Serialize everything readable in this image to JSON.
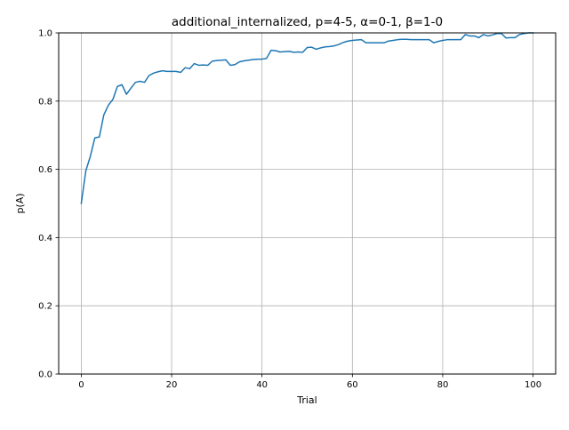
{
  "chart_data": {
    "type": "line",
    "title": "additional_internalized, p=4-5, α=0-1, β=1-0",
    "xlabel": "Trial",
    "ylabel": "p(A)",
    "xlim": [
      -5,
      105
    ],
    "ylim": [
      0.0,
      1.0
    ],
    "xticks": [
      0,
      20,
      40,
      60,
      80,
      100
    ],
    "yticks": [
      0.0,
      0.2,
      0.4,
      0.6,
      0.8,
      1.0
    ],
    "xtick_labels": [
      "0",
      "20",
      "40",
      "60",
      "80",
      "100"
    ],
    "ytick_labels": [
      "0.0",
      "0.2",
      "0.4",
      "0.6",
      "0.8",
      "1.0"
    ],
    "grid": true,
    "series": [
      {
        "color": "#1f77b4",
        "x": [
          0,
          1,
          2,
          3,
          4,
          5,
          6,
          7,
          8,
          9,
          10,
          11,
          12,
          13,
          14,
          15,
          16,
          17,
          18,
          19,
          20,
          21,
          22,
          23,
          24,
          25,
          26,
          27,
          28,
          29,
          30,
          31,
          32,
          33,
          34,
          35,
          36,
          37,
          38,
          39,
          40,
          41,
          42,
          43,
          44,
          45,
          46,
          47,
          48,
          49,
          50,
          51,
          52,
          53,
          54,
          55,
          56,
          57,
          58,
          59,
          60,
          61,
          62,
          63,
          64,
          65,
          66,
          67,
          68,
          69,
          70,
          71,
          72,
          73,
          74,
          75,
          76,
          77,
          78,
          79,
          80,
          81,
          82,
          83,
          84,
          85,
          86,
          87,
          88,
          89,
          90,
          91,
          92,
          93,
          94,
          95,
          96,
          97,
          98,
          99,
          100
        ],
        "y": [
          0.5,
          0.595,
          0.638,
          0.692,
          0.695,
          0.76,
          0.788,
          0.805,
          0.843,
          0.848,
          0.82,
          0.838,
          0.855,
          0.858,
          0.855,
          0.875,
          0.882,
          0.886,
          0.889,
          0.887,
          0.887,
          0.887,
          0.884,
          0.898,
          0.895,
          0.91,
          0.905,
          0.906,
          0.905,
          0.917,
          0.919,
          0.92,
          0.921,
          0.905,
          0.907,
          0.915,
          0.918,
          0.92,
          0.922,
          0.923,
          0.923,
          0.925,
          0.949,
          0.948,
          0.944,
          0.945,
          0.946,
          0.943,
          0.944,
          0.943,
          0.957,
          0.958,
          0.952,
          0.956,
          0.959,
          0.96,
          0.962,
          0.966,
          0.972,
          0.976,
          0.978,
          0.979,
          0.98,
          0.971,
          0.971,
          0.971,
          0.971,
          0.971,
          0.976,
          0.978,
          0.98,
          0.981,
          0.981,
          0.98,
          0.98,
          0.98,
          0.98,
          0.98,
          0.971,
          0.975,
          0.978,
          0.98,
          0.98,
          0.98,
          0.98,
          0.995,
          0.991,
          0.991,
          0.986,
          0.995,
          0.991,
          0.994,
          0.998,
          0.998,
          0.985,
          0.986,
          0.986,
          0.995,
          0.998,
          1.0,
          1.0
        ]
      }
    ]
  }
}
